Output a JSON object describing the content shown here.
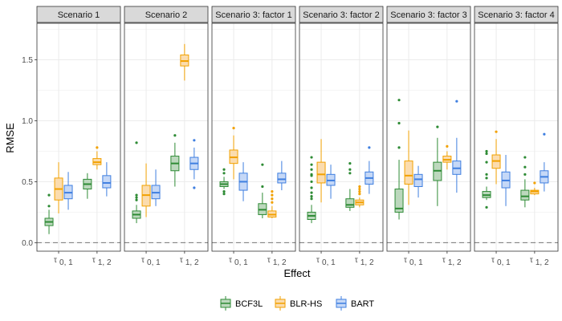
{
  "chart_data": {
    "type": "boxplot",
    "xlabel": "Effect",
    "ylabel": "RMSE",
    "ylim": [
      -0.07,
      1.8
    ],
    "yticks": [
      "0.0",
      "0.5",
      "1.0",
      "1.5"
    ],
    "ytick_values": [
      0.0,
      0.5,
      1.0,
      1.5
    ],
    "reference_line": 0.0,
    "categories": [
      {
        "label": "τ",
        "sub": "0, 1"
      },
      {
        "label": "τ",
        "sub": "1, 2"
      }
    ],
    "legend": {
      "position": "bottom",
      "entries": [
        {
          "name": "BCF3L",
          "color": "#2e8b35"
        },
        {
          "name": "BLR-HS",
          "color": "#f2a100"
        },
        {
          "name": "BART",
          "color": "#3f7fe0"
        }
      ]
    },
    "panels": [
      {
        "title": "Scenario 1",
        "boxes": [
          {
            "category": 0,
            "series": "BCF3L",
            "min": 0.07,
            "q1": 0.14,
            "median": 0.17,
            "q3": 0.2,
            "max": 0.27,
            "outliers": [
              0.3,
              0.39
            ]
          },
          {
            "category": 0,
            "series": "BLR-HS",
            "min": 0.24,
            "q1": 0.35,
            "median": 0.44,
            "q3": 0.53,
            "max": 0.66,
            "outliers": []
          },
          {
            "category": 0,
            "series": "BART",
            "min": 0.27,
            "q1": 0.36,
            "median": 0.41,
            "q3": 0.47,
            "max": 0.58,
            "outliers": []
          },
          {
            "category": 1,
            "series": "BCF3L",
            "min": 0.36,
            "q1": 0.44,
            "median": 0.48,
            "q3": 0.52,
            "max": 0.57,
            "outliers": []
          },
          {
            "category": 1,
            "series": "BLR-HS",
            "min": 0.6,
            "q1": 0.64,
            "median": 0.66,
            "q3": 0.69,
            "max": 0.75,
            "outliers": [
              0.78
            ]
          },
          {
            "category": 1,
            "series": "BART",
            "min": 0.38,
            "q1": 0.45,
            "median": 0.49,
            "q3": 0.55,
            "max": 0.66,
            "outliers": []
          }
        ]
      },
      {
        "title": "Scenario 2",
        "boxes": [
          {
            "category": 0,
            "series": "BCF3L",
            "min": 0.16,
            "q1": 0.2,
            "median": 0.23,
            "q3": 0.26,
            "max": 0.31,
            "outliers": [
              0.35,
              0.37,
              0.39,
              0.82
            ]
          },
          {
            "category": 0,
            "series": "BLR-HS",
            "min": 0.21,
            "q1": 0.3,
            "median": 0.39,
            "q3": 0.47,
            "max": 0.65,
            "outliers": []
          },
          {
            "category": 0,
            "series": "BART",
            "min": 0.3,
            "q1": 0.36,
            "median": 0.41,
            "q3": 0.47,
            "max": 0.6,
            "outliers": []
          },
          {
            "category": 1,
            "series": "BCF3L",
            "min": 0.46,
            "q1": 0.59,
            "median": 0.65,
            "q3": 0.71,
            "max": 0.82,
            "outliers": [
              0.88
            ]
          },
          {
            "category": 1,
            "series": "BLR-HS",
            "min": 1.33,
            "q1": 1.45,
            "median": 1.49,
            "q3": 1.54,
            "max": 1.63,
            "outliers": []
          },
          {
            "category": 1,
            "series": "BART",
            "min": 0.52,
            "q1": 0.6,
            "median": 0.65,
            "q3": 0.7,
            "max": 0.78,
            "outliers": [
              0.45,
              0.84
            ]
          }
        ]
      },
      {
        "title": "Scenario 3: factor 1",
        "boxes": [
          {
            "category": 0,
            "series": "BCF3L",
            "min": 0.44,
            "q1": 0.46,
            "median": 0.48,
            "q3": 0.5,
            "max": 0.54,
            "outliers": [
              0.4,
              0.42,
              0.57,
              0.6
            ]
          },
          {
            "category": 0,
            "series": "BLR-HS",
            "min": 0.52,
            "q1": 0.65,
            "median": 0.7,
            "q3": 0.76,
            "max": 0.88,
            "outliers": [
              0.94
            ]
          },
          {
            "category": 0,
            "series": "BART",
            "min": 0.34,
            "q1": 0.43,
            "median": 0.5,
            "q3": 0.57,
            "max": 0.66,
            "outliers": []
          },
          {
            "category": 1,
            "series": "BCF3L",
            "min": 0.2,
            "q1": 0.23,
            "median": 0.27,
            "q3": 0.32,
            "max": 0.41,
            "outliers": [
              0.46,
              0.64
            ]
          },
          {
            "category": 1,
            "series": "BLR-HS",
            "min": 0.2,
            "q1": 0.21,
            "median": 0.23,
            "q3": 0.26,
            "max": 0.3,
            "outliers": [
              0.33,
              0.36,
              0.39,
              0.42
            ]
          },
          {
            "category": 1,
            "series": "BART",
            "min": 0.43,
            "q1": 0.49,
            "median": 0.52,
            "q3": 0.57,
            "max": 0.67,
            "outliers": []
          }
        ]
      },
      {
        "title": "Scenario 3: factor 2",
        "boxes": [
          {
            "category": 0,
            "series": "BCF3L",
            "min": 0.16,
            "q1": 0.19,
            "median": 0.22,
            "q3": 0.25,
            "max": 0.31,
            "outliers": [
              0.36,
              0.38,
              0.41,
              0.45,
              0.5,
              0.55,
              0.56,
              0.6,
              0.64,
              0.7
            ]
          },
          {
            "category": 0,
            "series": "BLR-HS",
            "min": 0.33,
            "q1": 0.49,
            "median": 0.56,
            "q3": 0.66,
            "max": 0.85,
            "outliers": []
          },
          {
            "category": 0,
            "series": "BART",
            "min": 0.36,
            "q1": 0.47,
            "median": 0.51,
            "q3": 0.56,
            "max": 0.64,
            "outliers": []
          },
          {
            "category": 1,
            "series": "BCF3L",
            "min": 0.26,
            "q1": 0.29,
            "median": 0.31,
            "q3": 0.36,
            "max": 0.44,
            "outliers": [
              0.57,
              0.6,
              0.65
            ]
          },
          {
            "category": 1,
            "series": "BLR-HS",
            "min": 0.29,
            "q1": 0.31,
            "median": 0.33,
            "q3": 0.35,
            "max": 0.37,
            "outliers": [
              0.4,
              0.42,
              0.44,
              0.46
            ]
          },
          {
            "category": 1,
            "series": "BART",
            "min": 0.4,
            "q1": 0.48,
            "median": 0.53,
            "q3": 0.58,
            "max": 0.67,
            "outliers": [
              0.78
            ]
          }
        ]
      },
      {
        "title": "Scenario 3: factor 3",
        "boxes": [
          {
            "category": 0,
            "series": "BCF3L",
            "min": 0.19,
            "q1": 0.25,
            "median": 0.28,
            "q3": 0.44,
            "max": 0.68,
            "outliers": [
              0.78,
              0.98,
              1.17
            ]
          },
          {
            "category": 0,
            "series": "BLR-HS",
            "min": 0.31,
            "q1": 0.48,
            "median": 0.55,
            "q3": 0.67,
            "max": 0.92,
            "outliers": []
          },
          {
            "category": 0,
            "series": "BART",
            "min": 0.37,
            "q1": 0.46,
            "median": 0.52,
            "q3": 0.56,
            "max": 0.63,
            "outliers": []
          },
          {
            "category": 1,
            "series": "BCF3L",
            "min": 0.3,
            "q1": 0.51,
            "median": 0.59,
            "q3": 0.66,
            "max": 0.86,
            "outliers": [
              0.95
            ]
          },
          {
            "category": 1,
            "series": "BLR-HS",
            "min": 0.6,
            "q1": 0.66,
            "median": 0.68,
            "q3": 0.71,
            "max": 0.75,
            "outliers": [
              0.79
            ]
          },
          {
            "category": 1,
            "series": "BART",
            "min": 0.41,
            "q1": 0.56,
            "median": 0.61,
            "q3": 0.67,
            "max": 0.86,
            "outliers": [
              1.16
            ]
          }
        ]
      },
      {
        "title": "Scenario 3: factor 4",
        "boxes": [
          {
            "category": 0,
            "series": "BCF3L",
            "min": 0.35,
            "q1": 0.37,
            "median": 0.39,
            "q3": 0.42,
            "max": 0.46,
            "outliers": [
              0.29,
              0.53,
              0.56,
              0.66,
              0.73,
              0.75
            ]
          },
          {
            "category": 0,
            "series": "BLR-HS",
            "min": 0.48,
            "q1": 0.61,
            "median": 0.67,
            "q3": 0.72,
            "max": 0.85,
            "outliers": [
              0.91
            ]
          },
          {
            "category": 0,
            "series": "BART",
            "min": 0.3,
            "q1": 0.45,
            "median": 0.51,
            "q3": 0.58,
            "max": 0.72,
            "outliers": []
          },
          {
            "category": 1,
            "series": "BCF3L",
            "min": 0.29,
            "q1": 0.35,
            "median": 0.38,
            "q3": 0.43,
            "max": 0.52,
            "outliers": [
              0.56,
              0.62,
              0.7
            ]
          },
          {
            "category": 1,
            "series": "BLR-HS",
            "min": 0.39,
            "q1": 0.4,
            "median": 0.42,
            "q3": 0.43,
            "max": 0.45,
            "outliers": [
              0.49
            ]
          },
          {
            "category": 1,
            "series": "BART",
            "min": 0.42,
            "q1": 0.49,
            "median": 0.54,
            "q3": 0.59,
            "max": 0.66,
            "outliers": [
              0.89
            ]
          }
        ]
      }
    ]
  }
}
